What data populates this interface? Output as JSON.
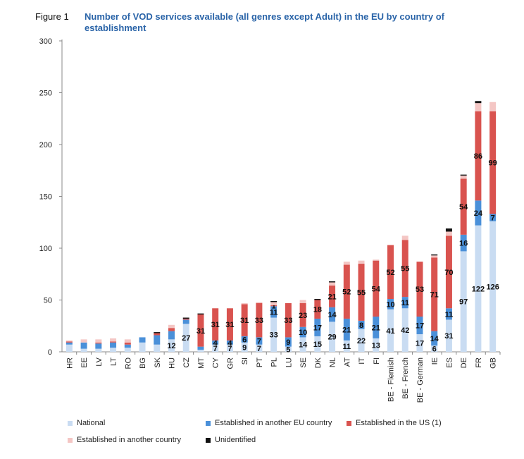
{
  "figure": {
    "label": "Figure 1",
    "title": "Number of VOD services available  (all genres except Adult) in the EU by country of establishment"
  },
  "colors": {
    "national": "#c9dcf2",
    "eu": "#4a90d9",
    "us": "#d9534f",
    "other": "#f4c6c4",
    "unidentified": "#111111"
  },
  "chart_data": {
    "type": "bar",
    "stacked": true,
    "ylim": [
      0,
      300
    ],
    "yticks": [
      0,
      50,
      100,
      150,
      200,
      250,
      300
    ],
    "categories": [
      "HR",
      "EE",
      "LV",
      "LT",
      "RO",
      "BG",
      "SK",
      "HU",
      "CZ",
      "MT",
      "CY",
      "GR",
      "SI",
      "PT",
      "PL",
      "LU",
      "SE",
      "DK",
      "NL",
      "AT",
      "IT",
      "FI",
      "BE - Flemish",
      "BE - French",
      "BE - German",
      "IE",
      "ES",
      "DE",
      "FR",
      "GB"
    ],
    "series": [
      {
        "name": "National",
        "key": "national",
        "values": [
          7,
          3,
          3,
          4,
          4,
          9,
          7,
          12,
          27,
          2,
          7,
          7,
          9,
          7,
          33,
          5,
          14,
          15,
          29,
          11,
          22,
          13,
          41,
          42,
          17,
          6,
          31,
          97,
          122,
          126
        ]
      },
      {
        "name": "Established in another EU country",
        "key": "eu",
        "values": [
          2,
          6,
          5,
          5,
          3,
          5,
          9,
          8,
          4,
          3,
          4,
          4,
          6,
          7,
          11,
          9,
          10,
          17,
          14,
          21,
          8,
          21,
          10,
          11,
          17,
          14,
          11,
          16,
          24,
          7
        ]
      },
      {
        "name": "Established in the US (1)",
        "key": "us",
        "values": [
          1,
          0,
          1,
          1,
          2,
          0,
          2,
          3,
          1,
          31,
          31,
          31,
          31,
          33,
          1,
          33,
          23,
          18,
          21,
          52,
          55,
          54,
          52,
          55,
          53,
          71,
          70,
          54,
          86,
          99
        ]
      },
      {
        "name": "Established in another country",
        "key": "other",
        "values": [
          1,
          3,
          3,
          3,
          3,
          0,
          0,
          3,
          0,
          0,
          0,
          0,
          1,
          1,
          3,
          0,
          3,
          0,
          3,
          3,
          3,
          1,
          0,
          4,
          0,
          2,
          4,
          3,
          8,
          9
        ]
      },
      {
        "name": "Unidentified",
        "key": "unidentified",
        "values": [
          0,
          0,
          0,
          0,
          0,
          0,
          1,
          0,
          1,
          1,
          0,
          0,
          0,
          0,
          1,
          0,
          0,
          1,
          1,
          0,
          0,
          0,
          0,
          0,
          0,
          1,
          3,
          1,
          2,
          0
        ]
      }
    ],
    "data_labels": {
      "national": [
        null,
        null,
        null,
        null,
        null,
        null,
        null,
        "12",
        "27",
        null,
        "7",
        "7",
        "9",
        "7",
        "33",
        "5",
        "14",
        "15",
        "29",
        "11",
        "22",
        "13",
        "41",
        "42",
        "17",
        "6",
        "31",
        "97",
        "122",
        "126"
      ],
      "eu": [
        null,
        null,
        null,
        null,
        null,
        null,
        null,
        null,
        null,
        null,
        "4",
        "4",
        "6",
        "7",
        "11",
        "9",
        "10",
        "17",
        "14",
        "21",
        "8",
        "21",
        "10",
        "11",
        "17",
        "14",
        "11",
        "16",
        "24",
        "7"
      ],
      "us": [
        null,
        null,
        null,
        null,
        null,
        null,
        null,
        null,
        null,
        "31",
        "31",
        "31",
        "31",
        "33",
        "1",
        "33",
        "23",
        "18",
        "21",
        "52",
        "55",
        "54",
        "52",
        "55",
        "53",
        "71",
        "70",
        "54",
        "86",
        "99"
      ]
    },
    "legend": [
      {
        "key": "national",
        "label": "National"
      },
      {
        "key": "eu",
        "label": "Established in another EU country"
      },
      {
        "key": "us",
        "label": "Established in the US (1)"
      },
      {
        "key": "other",
        "label": "Established in another country"
      },
      {
        "key": "unidentified",
        "label": "Unidentified"
      }
    ],
    "legend_position": "bottom"
  }
}
